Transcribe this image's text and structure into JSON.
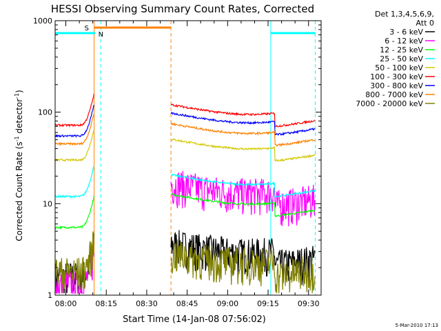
{
  "chart_data": {
    "type": "line",
    "title": "HESSI Observing Summary Count Rates, Corrected",
    "xlabel": "Start Time (14-Jan-08 07:56:02)",
    "ylabel_main": "Corrected Count Rate (s",
    "ylabel_sup1": "-1",
    "ylabel_mid": " detector",
    "ylabel_sup2": "-1",
    "ylabel_end": ")",
    "footer": "5-Mar-2010 17:13",
    "y_scale": "log",
    "ylim": [
      1,
      1000
    ],
    "xlim": [
      "07:56:02",
      "09:34:40"
    ],
    "x_ticks": [
      "08:00",
      "08:15",
      "08:30",
      "08:45",
      "09:00",
      "09:15",
      "09:30"
    ],
    "y_ticks": [
      "1",
      "10",
      "100",
      "1000"
    ],
    "legend": {
      "header_line1": "Det 1,3,4,5,6,9,",
      "header_line2": "Att 0",
      "placement": "top-right outside"
    },
    "series": [
      {
        "name": "3 - 6 keV",
        "color": "#000000",
        "pre": 1.6,
        "post": 3.2
      },
      {
        "name": "6 - 12 keV",
        "color": "#ff00ff",
        "pre": 1.3,
        "post": 14.5
      },
      {
        "name": "12 - 25 keV",
        "color": "#00ff00",
        "pre": 5.5,
        "post": 11
      },
      {
        "name": "25 - 50 keV",
        "color": "#00ffff",
        "pre": 12,
        "post": 18
      },
      {
        "name": "50 - 100 keV",
        "color": "#d2c800",
        "pre": 30,
        "post": 44
      },
      {
        "name": "100 - 300 keV",
        "color": "#ff0000",
        "pre": 72,
        "post": 105
      },
      {
        "name": "300 - 800 keV",
        "color": "#0000ff",
        "pre": 55,
        "post": 85
      },
      {
        "name": "800 - 7000 keV",
        "color": "#ff8000",
        "pre": 45,
        "post": 65
      },
      {
        "name": "7000 - 20000 keV",
        "color": "#808000",
        "pre": 1.8,
        "post": 2.5
      }
    ],
    "flags": [
      {
        "label": "S",
        "color": "#ff8000",
        "start": "08:10:30",
        "end": "08:39:00"
      },
      {
        "label": "N",
        "color": "#00ffff",
        "start": "07:56:02",
        "end": "08:11:00"
      },
      {
        "label": "",
        "color": "#00ffff",
        "start": "09:16:00",
        "end": "09:32:30"
      }
    ],
    "time_markers": [
      {
        "time": "08:10:30",
        "color": "#ff8000",
        "style": "solid"
      },
      {
        "time": "08:13:00",
        "color": "#00ffff",
        "style": "dashed"
      },
      {
        "time": "08:39:00",
        "color": "#ff8000",
        "style": "dashed"
      },
      {
        "time": "09:16:00",
        "color": "#00ffff",
        "style": "solid"
      },
      {
        "time": "09:32:30",
        "color": "#00ffff",
        "style": "dashed"
      }
    ],
    "gap": {
      "start": "08:13:00",
      "end": "08:39:00"
    }
  }
}
